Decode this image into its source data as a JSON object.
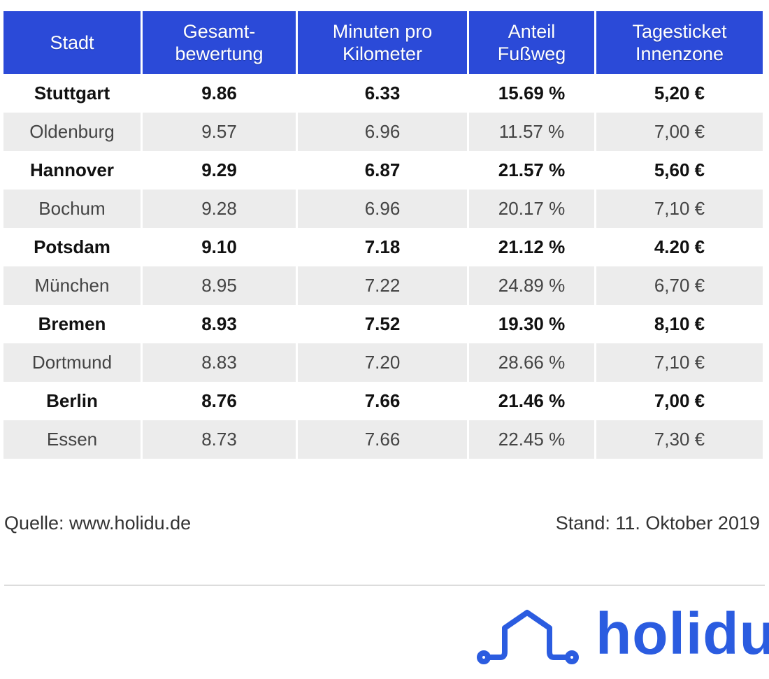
{
  "table": {
    "headers": [
      "Stadt",
      "Gesamt-\nbewertung",
      "Minuten pro\nKilometer",
      "Anteil\nFußweg",
      "Tagesticket\nInnenzone"
    ],
    "rows": [
      [
        "Stuttgart",
        "9.86",
        "6.33",
        "15.69 %",
        "5,20 €"
      ],
      [
        "Oldenburg",
        "9.57",
        "6.96",
        "11.57 %",
        "7,00 €"
      ],
      [
        "Hannover",
        "9.29",
        "6.87",
        "21.57 %",
        "5,60 €"
      ],
      [
        "Bochum",
        "9.28",
        "6.96",
        "20.17 %",
        "7,10 €"
      ],
      [
        "Potsdam",
        "9.10",
        "7.18",
        "21.12 %",
        "4.20 €"
      ],
      [
        "München",
        "8.95",
        "7.22",
        "24.89 %",
        "6,70 €"
      ],
      [
        "Bremen",
        "8.93",
        "7.52",
        "19.30 %",
        "8,10 €"
      ],
      [
        "Dortmund",
        "8.83",
        "7.20",
        "28.66 %",
        "7,10 €"
      ],
      [
        "Berlin",
        "8.76",
        "7.66",
        "21.46 %",
        "7,00 €"
      ],
      [
        "Essen",
        "8.73",
        "7.66",
        "22.45 %",
        "7,30 €"
      ]
    ]
  },
  "footer": {
    "source": "Quelle: www.holidu.de",
    "date": "Stand: 11. Oktober 2019"
  },
  "logo": {
    "text": "holidu",
    "icon": "holidu-house-icon",
    "color": "#2b5ce0"
  },
  "colors": {
    "header_bg": "#2b4ad8",
    "stripe_bg": "#ececec"
  }
}
